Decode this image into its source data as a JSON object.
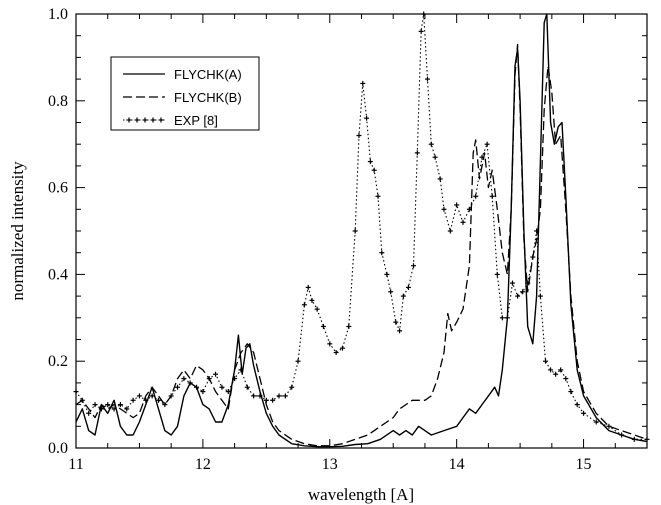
{
  "chart_data": {
    "type": "line",
    "xlabel": "wavelength [A]",
    "ylabel": "normalized intensity",
    "xlim": [
      11,
      15.5
    ],
    "ylim": [
      0,
      1.0
    ],
    "xticks": [
      11,
      12,
      13,
      14,
      15
    ],
    "xtick_labels": [
      "11",
      "12",
      "13",
      "14",
      "15"
    ],
    "yticks": [
      0,
      0.2,
      0.4,
      0.6,
      0.8,
      1.0
    ],
    "ytick_labels": [
      "0.0",
      "0.2",
      "0.4",
      "0.6",
      "0.8",
      "1.0"
    ],
    "grid": false,
    "legend_position": "top-left",
    "series": [
      {
        "name": "FLYCHK(A)",
        "style": "solid",
        "points": [
          [
            11.0,
            0.06
          ],
          [
            11.05,
            0.09
          ],
          [
            11.1,
            0.04
          ],
          [
            11.15,
            0.03
          ],
          [
            11.2,
            0.1
          ],
          [
            11.25,
            0.08
          ],
          [
            11.3,
            0.11
          ],
          [
            11.35,
            0.05
          ],
          [
            11.4,
            0.03
          ],
          [
            11.45,
            0.03
          ],
          [
            11.5,
            0.06
          ],
          [
            11.55,
            0.1
          ],
          [
            11.6,
            0.14
          ],
          [
            11.65,
            0.09
          ],
          [
            11.7,
            0.04
          ],
          [
            11.75,
            0.03
          ],
          [
            11.8,
            0.05
          ],
          [
            11.85,
            0.12
          ],
          [
            11.9,
            0.15
          ],
          [
            11.95,
            0.14
          ],
          [
            12.0,
            0.1
          ],
          [
            12.05,
            0.09
          ],
          [
            12.1,
            0.06
          ],
          [
            12.15,
            0.06
          ],
          [
            12.2,
            0.1
          ],
          [
            12.25,
            0.18
          ],
          [
            12.28,
            0.26
          ],
          [
            12.31,
            0.17
          ],
          [
            12.34,
            0.23
          ],
          [
            12.37,
            0.24
          ],
          [
            12.4,
            0.19
          ],
          [
            12.45,
            0.13
          ],
          [
            12.5,
            0.08
          ],
          [
            12.55,
            0.05
          ],
          [
            12.6,
            0.03
          ],
          [
            12.7,
            0.01
          ],
          [
            12.8,
            0.005
          ],
          [
            12.9,
            0.003
          ],
          [
            13.0,
            0.003
          ],
          [
            13.1,
            0.004
          ],
          [
            13.2,
            0.008
          ],
          [
            13.3,
            0.01
          ],
          [
            13.4,
            0.02
          ],
          [
            13.5,
            0.04
          ],
          [
            13.55,
            0.03
          ],
          [
            13.6,
            0.04
          ],
          [
            13.65,
            0.03
          ],
          [
            13.7,
            0.05
          ],
          [
            13.75,
            0.04
          ],
          [
            13.8,
            0.03
          ],
          [
            13.9,
            0.04
          ],
          [
            14.0,
            0.05
          ],
          [
            14.05,
            0.07
          ],
          [
            14.1,
            0.09
          ],
          [
            14.15,
            0.08
          ],
          [
            14.2,
            0.1
          ],
          [
            14.25,
            0.12
          ],
          [
            14.3,
            0.14
          ],
          [
            14.33,
            0.12
          ],
          [
            14.36,
            0.18
          ],
          [
            14.4,
            0.3
          ],
          [
            14.43,
            0.55
          ],
          [
            14.46,
            0.88
          ],
          [
            14.48,
            0.92
          ],
          [
            14.5,
            0.8
          ],
          [
            14.53,
            0.5
          ],
          [
            14.56,
            0.28
          ],
          [
            14.6,
            0.24
          ],
          [
            14.63,
            0.35
          ],
          [
            14.66,
            0.66
          ],
          [
            14.69,
            0.98
          ],
          [
            14.71,
            1.0
          ],
          [
            14.74,
            0.75
          ],
          [
            14.77,
            0.7
          ],
          [
            14.8,
            0.74
          ],
          [
            14.83,
            0.75
          ],
          [
            14.86,
            0.58
          ],
          [
            14.9,
            0.33
          ],
          [
            14.95,
            0.18
          ],
          [
            15.0,
            0.12
          ],
          [
            15.1,
            0.07
          ],
          [
            15.2,
            0.04
          ],
          [
            15.3,
            0.03
          ],
          [
            15.4,
            0.02
          ],
          [
            15.5,
            0.015
          ]
        ]
      },
      {
        "name": "FLYCHK(B)",
        "style": "dashed",
        "points": [
          [
            11.0,
            0.1
          ],
          [
            11.05,
            0.11
          ],
          [
            11.1,
            0.09
          ],
          [
            11.15,
            0.07
          ],
          [
            11.2,
            0.1
          ],
          [
            11.25,
            0.09
          ],
          [
            11.3,
            0.1
          ],
          [
            11.35,
            0.09
          ],
          [
            11.4,
            0.08
          ],
          [
            11.45,
            0.07
          ],
          [
            11.5,
            0.08
          ],
          [
            11.55,
            0.12
          ],
          [
            11.6,
            0.14
          ],
          [
            11.65,
            0.12
          ],
          [
            11.7,
            0.1
          ],
          [
            11.75,
            0.12
          ],
          [
            11.8,
            0.16
          ],
          [
            11.85,
            0.18
          ],
          [
            11.9,
            0.16
          ],
          [
            11.95,
            0.19
          ],
          [
            12.0,
            0.18
          ],
          [
            12.05,
            0.16
          ],
          [
            12.1,
            0.13
          ],
          [
            12.15,
            0.11
          ],
          [
            12.2,
            0.09
          ],
          [
            12.25,
            0.18
          ],
          [
            12.3,
            0.22
          ],
          [
            12.35,
            0.24
          ],
          [
            12.4,
            0.22
          ],
          [
            12.45,
            0.16
          ],
          [
            12.5,
            0.1
          ],
          [
            12.55,
            0.06
          ],
          [
            12.6,
            0.04
          ],
          [
            12.7,
            0.02
          ],
          [
            12.8,
            0.01
          ],
          [
            12.9,
            0.005
          ],
          [
            13.0,
            0.005
          ],
          [
            13.1,
            0.01
          ],
          [
            13.2,
            0.02
          ],
          [
            13.3,
            0.03
          ],
          [
            13.4,
            0.05
          ],
          [
            13.5,
            0.07
          ],
          [
            13.55,
            0.09
          ],
          [
            13.6,
            0.1
          ],
          [
            13.65,
            0.11
          ],
          [
            13.7,
            0.11
          ],
          [
            13.75,
            0.11
          ],
          [
            13.8,
            0.12
          ],
          [
            13.85,
            0.16
          ],
          [
            13.9,
            0.22
          ],
          [
            13.93,
            0.31
          ],
          [
            13.96,
            0.27
          ],
          [
            14.0,
            0.29
          ],
          [
            14.05,
            0.32
          ],
          [
            14.1,
            0.42
          ],
          [
            14.13,
            0.68
          ],
          [
            14.15,
            0.71
          ],
          [
            14.18,
            0.62
          ],
          [
            14.22,
            0.68
          ],
          [
            14.25,
            0.6
          ],
          [
            14.28,
            0.64
          ],
          [
            14.32,
            0.55
          ],
          [
            14.36,
            0.45
          ],
          [
            14.4,
            0.4
          ],
          [
            14.43,
            0.55
          ],
          [
            14.46,
            0.86
          ],
          [
            14.48,
            0.93
          ],
          [
            14.5,
            0.78
          ],
          [
            14.53,
            0.48
          ],
          [
            14.56,
            0.36
          ],
          [
            14.6,
            0.44
          ],
          [
            14.63,
            0.48
          ],
          [
            14.66,
            0.55
          ],
          [
            14.69,
            0.78
          ],
          [
            14.72,
            0.88
          ],
          [
            14.75,
            0.82
          ],
          [
            14.78,
            0.7
          ],
          [
            14.82,
            0.72
          ],
          [
            14.86,
            0.55
          ],
          [
            14.9,
            0.35
          ],
          [
            14.95,
            0.2
          ],
          [
            15.0,
            0.13
          ],
          [
            15.1,
            0.08
          ],
          [
            15.2,
            0.05
          ],
          [
            15.3,
            0.04
          ],
          [
            15.4,
            0.03
          ],
          [
            15.5,
            0.02
          ]
        ]
      },
      {
        "name": "EXP [8]",
        "style": "dotted-cross",
        "points": [
          [
            11.0,
            0.13
          ],
          [
            11.05,
            0.11
          ],
          [
            11.1,
            0.08
          ],
          [
            11.15,
            0.1
          ],
          [
            11.2,
            0.09
          ],
          [
            11.25,
            0.1
          ],
          [
            11.3,
            0.09
          ],
          [
            11.35,
            0.1
          ],
          [
            11.4,
            0.09
          ],
          [
            11.45,
            0.11
          ],
          [
            11.5,
            0.12
          ],
          [
            11.55,
            0.11
          ],
          [
            11.6,
            0.12
          ],
          [
            11.65,
            0.11
          ],
          [
            11.7,
            0.1
          ],
          [
            11.75,
            0.12
          ],
          [
            11.8,
            0.14
          ],
          [
            11.85,
            0.16
          ],
          [
            11.9,
            0.15
          ],
          [
            11.95,
            0.14
          ],
          [
            12.0,
            0.13
          ],
          [
            12.05,
            0.16
          ],
          [
            12.1,
            0.17
          ],
          [
            12.15,
            0.14
          ],
          [
            12.2,
            0.13
          ],
          [
            12.25,
            0.16
          ],
          [
            12.3,
            0.18
          ],
          [
            12.35,
            0.14
          ],
          [
            12.4,
            0.12
          ],
          [
            12.45,
            0.12
          ],
          [
            12.5,
            0.11
          ],
          [
            12.55,
            0.11
          ],
          [
            12.6,
            0.12
          ],
          [
            12.65,
            0.12
          ],
          [
            12.7,
            0.14
          ],
          [
            12.75,
            0.2
          ],
          [
            12.8,
            0.33
          ],
          [
            12.83,
            0.37
          ],
          [
            12.86,
            0.34
          ],
          [
            12.9,
            0.32
          ],
          [
            12.95,
            0.28
          ],
          [
            13.0,
            0.24
          ],
          [
            13.05,
            0.22
          ],
          [
            13.1,
            0.23
          ],
          [
            13.15,
            0.28
          ],
          [
            13.2,
            0.5
          ],
          [
            13.23,
            0.72
          ],
          [
            13.26,
            0.84
          ],
          [
            13.29,
            0.76
          ],
          [
            13.32,
            0.66
          ],
          [
            13.35,
            0.64
          ],
          [
            13.38,
            0.58
          ],
          [
            13.41,
            0.45
          ],
          [
            13.45,
            0.4
          ],
          [
            13.48,
            0.36
          ],
          [
            13.52,
            0.29
          ],
          [
            13.55,
            0.27
          ],
          [
            13.58,
            0.35
          ],
          [
            13.62,
            0.37
          ],
          [
            13.66,
            0.42
          ],
          [
            13.69,
            0.68
          ],
          [
            13.72,
            0.96
          ],
          [
            13.74,
            1.0
          ],
          [
            13.77,
            0.85
          ],
          [
            13.8,
            0.7
          ],
          [
            13.83,
            0.67
          ],
          [
            13.87,
            0.62
          ],
          [
            13.9,
            0.55
          ],
          [
            13.95,
            0.5
          ],
          [
            14.0,
            0.56
          ],
          [
            14.05,
            0.52
          ],
          [
            14.1,
            0.55
          ],
          [
            14.15,
            0.58
          ],
          [
            14.2,
            0.67
          ],
          [
            14.24,
            0.7
          ],
          [
            14.28,
            0.58
          ],
          [
            14.32,
            0.4
          ],
          [
            14.36,
            0.3
          ],
          [
            14.4,
            0.3
          ],
          [
            14.44,
            0.38
          ],
          [
            14.48,
            0.35
          ],
          [
            14.52,
            0.36
          ],
          [
            14.56,
            0.38
          ],
          [
            14.6,
            0.44
          ],
          [
            14.63,
            0.5
          ],
          [
            14.66,
            0.35
          ],
          [
            14.7,
            0.2
          ],
          [
            14.74,
            0.18
          ],
          [
            14.78,
            0.17
          ],
          [
            14.82,
            0.18
          ],
          [
            14.86,
            0.16
          ],
          [
            14.9,
            0.13
          ],
          [
            14.95,
            0.1
          ],
          [
            15.0,
            0.08
          ],
          [
            15.1,
            0.06
          ],
          [
            15.2,
            0.05
          ],
          [
            15.3,
            0.03
          ],
          [
            15.4,
            0.02
          ],
          [
            15.5,
            0.02
          ]
        ]
      }
    ]
  }
}
